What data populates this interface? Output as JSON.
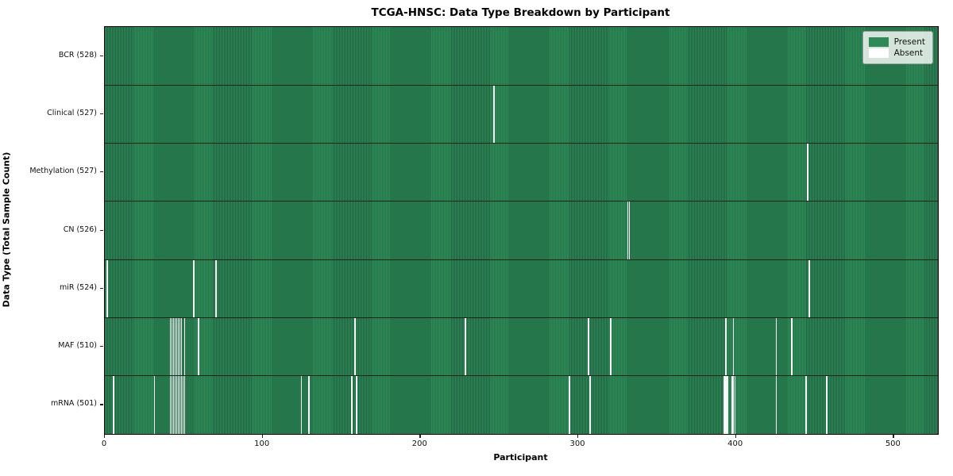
{
  "title": "TCGA-HNSC: Data Type Breakdown by Participant",
  "legend": {
    "present": "Present",
    "absent": "Absent"
  },
  "colors": {
    "present": "#2e8b57",
    "present_edge": "#1f6140",
    "absent": "#f7f7f7",
    "row_separator": "#15241a",
    "legend_present_swatch": "#2e8b57",
    "legend_absent_swatch": "#ffffff"
  },
  "chart_data": {
    "type": "heatmap",
    "title": "TCGA-HNSC: Data Type Breakdown by Participant",
    "xlabel": "Participant",
    "ylabel": "Data Type (Total Sample Count)",
    "x_ticks": [
      0,
      100,
      200,
      300,
      400,
      500
    ],
    "x_range": [
      0,
      528
    ],
    "n_participants": 528,
    "legend_entries": [
      "Present",
      "Absent"
    ],
    "legend_position": "upper right",
    "grid": false,
    "rows": [
      {
        "label": "BCR (528)",
        "total": 528,
        "absent": []
      },
      {
        "label": "Clinical (527)",
        "total": 527,
        "absent": [
          246
        ]
      },
      {
        "label": "Methylation (527)",
        "total": 527,
        "absent": [
          445
        ]
      },
      {
        "label": "CN (526)",
        "total": 526,
        "absent": [
          331,
          332
        ]
      },
      {
        "label": "miR (524)",
        "total": 524,
        "absent": [
          1,
          56,
          70,
          446
        ]
      },
      {
        "label": "MAF (510)",
        "total": 510,
        "absent": [
          41,
          42,
          43,
          44,
          45,
          46,
          47,
          48,
          50,
          59,
          158,
          228,
          306,
          320,
          393,
          398,
          425,
          435
        ]
      },
      {
        "label": "mRNA (501)",
        "total": 501,
        "absent": [
          5,
          31,
          41,
          42,
          43,
          44,
          45,
          46,
          47,
          48,
          49,
          50,
          124,
          129,
          156,
          159,
          294,
          307,
          392,
          393,
          394,
          397,
          398,
          399,
          425,
          444,
          457
        ]
      }
    ]
  }
}
